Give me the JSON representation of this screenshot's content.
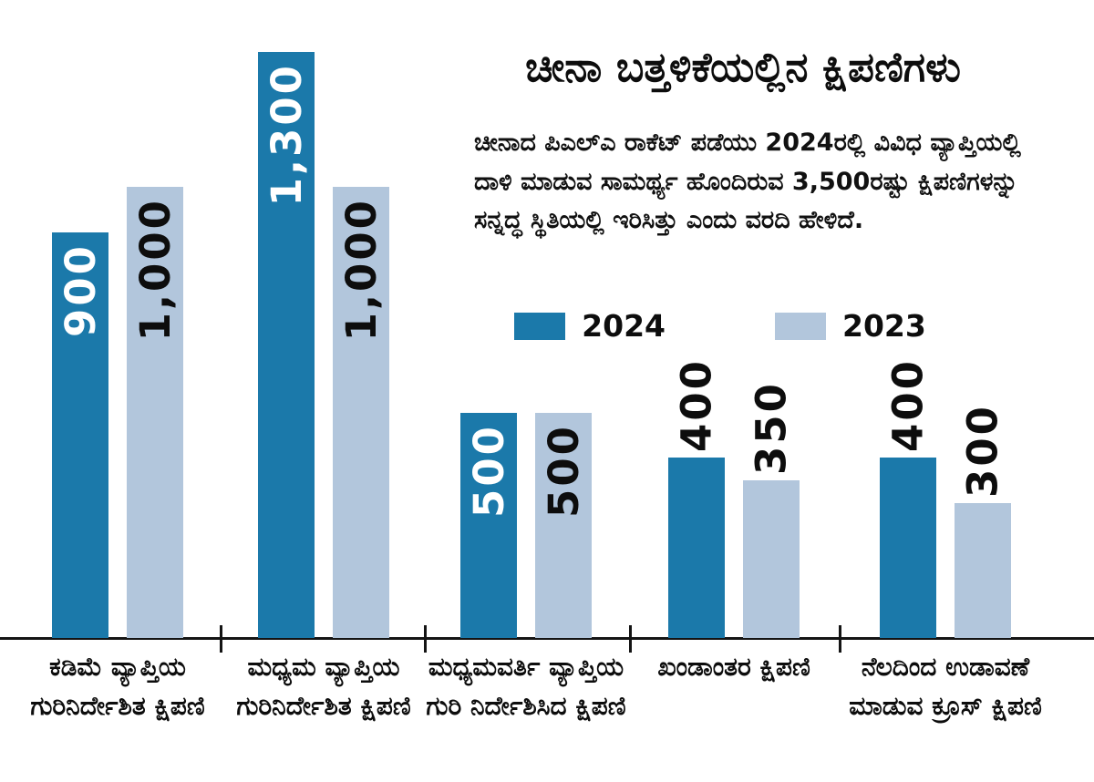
{
  "title": "ಚೀನಾ ಬತ್ತಳಿಕೆಯಲ್ಲಿನ ಕ್ಷಿಪಣಿಗಳು",
  "description": "ಚೀನಾದ ಪಿಎಲ್‌ಎ ರಾಕೆಟ್ ಪಡೆಯು 2024ರಲ್ಲಿ ವಿವಿಧ ವ್ಯಾಪ್ತಿಯಲ್ಲಿ ದಾಳಿ ಮಾಡುವ ಸಾಮರ್ಥ್ಯ ಹೊಂದಿರುವ 3,500ರಷ್ಟು ಕ್ಷಿಪಣಿಗಳನ್ನು ಸನ್ನದ್ಧ ಸ್ಥಿತಿಯಲ್ಲಿ ಇರಿಸಿತ್ತು ಎಂದು ವರದಿ ಹೇಳಿದೆ.",
  "legend": [
    {
      "label": "2024",
      "color": "#1b79aa"
    },
    {
      "label": "2023",
      "color": "#b2c6dc"
    }
  ],
  "colors": {
    "series_2024": "#1b79aa",
    "series_2023": "#b2c6dc",
    "axis": "#141414",
    "value_label_on_dark": "#ffffff",
    "value_label_on_light": "#0d0d0d"
  },
  "chart_data": {
    "type": "bar",
    "title": "ಚೀನಾ ಬತ್ತಳಿಕೆಯಲ್ಲಿನ ಕ್ಷಿಪಣಿಗಳು",
    "categories": [
      "ಕಡಿಮೆ ವ್ಯಾಪ್ತಿಯ ಗುರಿನಿರ್ದೇಶಿತ ಕ್ಷಿಪಣಿ",
      "ಮಧ್ಯಮ ವ್ಯಾಪ್ತಿಯ ಗುರಿನಿರ್ದೇಶಿತ ಕ್ಷಿಪಣಿ",
      "ಮಧ್ಯಮವರ್ತಿ ವ್ಯಾಪ್ತಿಯ ಗುರಿ ನಿರ್ದೇಶಿಸಿದ ಕ್ಷಿಪಣಿ",
      "ಖಂಡಾಂತರ ಕ್ಷಿಪಣಿ",
      "ನೆಲದಿಂದ ಉಡಾವಣೆ ಮಾಡುವ ಕ್ರೂಸ್ ಕ್ಷಿಪಣಿ"
    ],
    "series": [
      {
        "name": "2024",
        "color": "#1b79aa",
        "values": [
          900,
          1300,
          500,
          400,
          400
        ],
        "value_labels": [
          "900",
          "1,300",
          "500",
          "400",
          "400"
        ]
      },
      {
        "name": "2023",
        "color": "#b2c6dc",
        "values": [
          1000,
          1000,
          500,
          350,
          300
        ],
        "value_labels": [
          "1,000",
          "1,000",
          "500",
          "350",
          "300"
        ]
      }
    ],
    "ylim": [
      0,
      1300
    ],
    "value_label_placement": [
      "inside",
      "inside",
      "inside",
      "outside",
      "outside"
    ],
    "legend_position": "top-right",
    "grid": false,
    "xlabel": "",
    "ylabel": ""
  }
}
